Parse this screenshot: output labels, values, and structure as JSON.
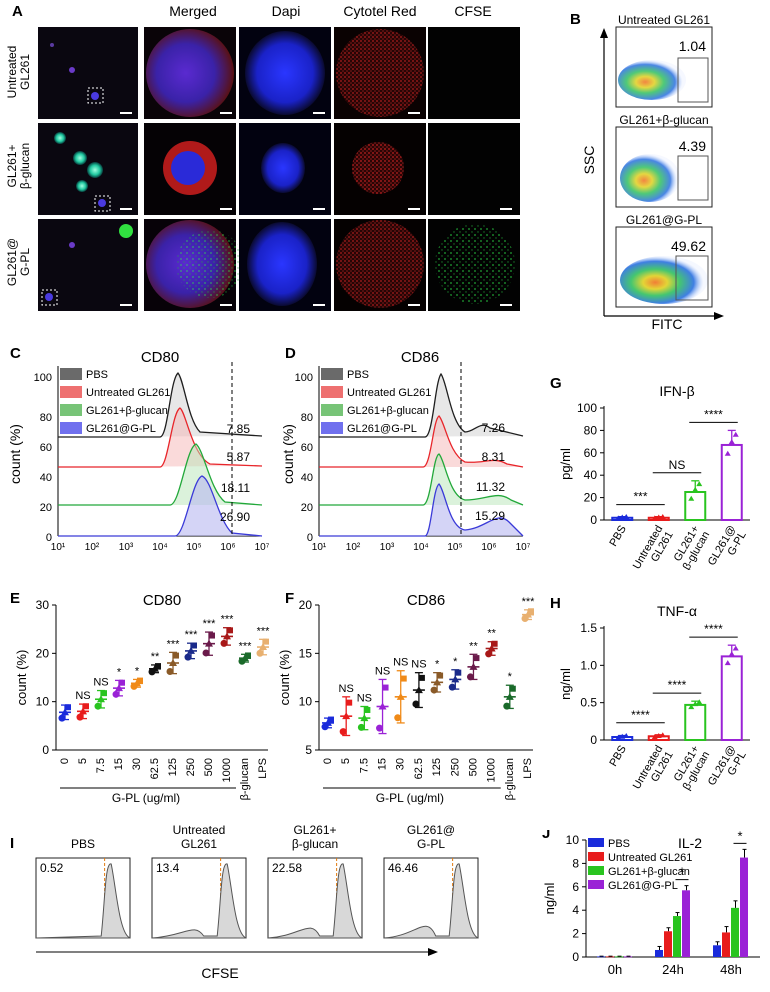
{
  "panelA": {
    "label": "A",
    "columns": [
      "Merged",
      "Dapi",
      "Cytotel Red",
      "CFSE"
    ],
    "rows": [
      {
        "line1": "Untreated",
        "line2": "GL261"
      },
      {
        "line1": "GL261+",
        "line2": "β-glucan"
      },
      {
        "line1": "GL261@",
        "line2": "G-PL"
      }
    ]
  },
  "panelB": {
    "label": "B",
    "ylabel": "SSC",
    "xlabel": "FITC",
    "plots": [
      {
        "title": "Untreated GL261",
        "value": "1.04"
      },
      {
        "title": "GL261+β-glucan",
        "value": "4.39"
      },
      {
        "title": "GL261@G-PL",
        "value": "49.62"
      }
    ]
  },
  "panelC": {
    "label": "C",
    "title": "CD80",
    "ylabel": "count (%)",
    "yticks": [
      "0",
      "20",
      "40",
      "60",
      "80",
      "100"
    ],
    "xticks": [
      "10¹",
      "10²",
      "10³",
      "10⁴",
      "10⁵",
      "10⁶",
      "10⁷"
    ],
    "legend": [
      "PBS",
      "Untreated GL261",
      "GL261+β-glucan",
      "GL261@G-PL"
    ],
    "values": [
      "7.85",
      "5.87",
      "18.11",
      "26.90"
    ]
  },
  "panelD": {
    "label": "D",
    "title": "CD86",
    "ylabel": "count (%)",
    "yticks": [
      "0",
      "20",
      "40",
      "60",
      "80",
      "100"
    ],
    "xticks": [
      "10¹",
      "10²",
      "10³",
      "10⁴",
      "10⁵",
      "10⁶",
      "10⁷"
    ],
    "legend": [
      "PBS",
      "Untreated GL261",
      "GL261+β-glucan",
      "GL261@G-PL"
    ],
    "values": [
      "7.26",
      "8.31",
      "11.32",
      "15.29"
    ]
  },
  "colors": {
    "pbs": "#1f1f1f",
    "untreated": "#e8252a",
    "beta": "#22a83a",
    "gpl": "#3a3ad8",
    "blue": "#1a2bdb",
    "red": "#e81c1c",
    "green": "#29c41f",
    "purple": "#9a22d6"
  },
  "chart_data": [
    {
      "id": "E",
      "type": "scatter",
      "title": "CD80",
      "ylabel": "count (%)",
      "xlabel": "G-PL (ug/ml)",
      "ylim": [
        0,
        30
      ],
      "yticks": [
        "0",
        "10",
        "20",
        "30"
      ],
      "categories": [
        "0",
        "5",
        "7.5",
        "15",
        "30",
        "62.5",
        "125",
        "250",
        "500",
        "1000",
        "β-glucan",
        "LPS"
      ],
      "values": [
        7.8,
        8.0,
        10.5,
        12.8,
        13.8,
        16.8,
        18.0,
        20.5,
        22.0,
        23.5,
        19.0,
        21.3
      ],
      "errors": [
        1.5,
        1.5,
        1.8,
        1.6,
        0.8,
        0.8,
        2.2,
        1.6,
        2.4,
        1.8,
        0.8,
        1.6
      ],
      "significance": [
        "",
        "NS",
        "NS",
        "*",
        "*",
        "**",
        "***",
        "***",
        "***",
        "***",
        "***",
        "***"
      ]
    },
    {
      "id": "F",
      "type": "scatter",
      "title": "CD86",
      "ylabel": "count (%)",
      "xlabel": "G-PL (ug/ml)",
      "ylim": [
        5,
        20
      ],
      "yticks": [
        "5",
        "10",
        "15",
        "20"
      ],
      "categories": [
        "0",
        "5",
        "7.5",
        "15",
        "30",
        "62.5",
        "125",
        "250",
        "500",
        "1000",
        "β-glucan",
        "LPS"
      ],
      "values": [
        7.8,
        8.5,
        8.3,
        9.5,
        10.5,
        11.2,
        12.0,
        12.3,
        13.6,
        15.5,
        10.5,
        19.0
      ],
      "errors": [
        0.5,
        2.0,
        1.2,
        2.8,
        2.7,
        1.8,
        1.0,
        1.0,
        1.3,
        0.7,
        1.2,
        0.5
      ],
      "significance": [
        "",
        "NS",
        "NS",
        "NS",
        "NS",
        "NS",
        "*",
        "*",
        "**",
        "**",
        "*",
        "***"
      ]
    },
    {
      "id": "G",
      "type": "bar",
      "title": "IFN-β",
      "ylabel": "pg/ml",
      "ylim": [
        0,
        100
      ],
      "yticks": [
        "0",
        "20",
        "40",
        "60",
        "80",
        "100"
      ],
      "categories": [
        "PBS",
        "Untreated GL261",
        "GL261+ β-glucan",
        "GL261@ G-PL"
      ],
      "values": [
        2,
        2,
        25,
        67
      ],
      "errors": [
        1,
        1,
        10,
        13
      ],
      "comparisons": [
        {
          "label": "***"
        },
        {
          "label": "NS"
        },
        {
          "label": "****"
        }
      ]
    },
    {
      "id": "H",
      "type": "bar",
      "title": "TNF-α",
      "ylabel": "ng/ml",
      "ylim": [
        0,
        1.5
      ],
      "yticks": [
        "0",
        "0.5",
        "1.0",
        "1.5"
      ],
      "categories": [
        "PBS",
        "Untreated GL261",
        "GL261+ β-glucan",
        "GL261@ G-PL"
      ],
      "values": [
        0.04,
        0.05,
        0.47,
        1.12
      ],
      "errors": [
        0.02,
        0.02,
        0.05,
        0.15
      ],
      "comparisons": [
        {
          "label": "****"
        },
        {
          "label": "****"
        },
        {
          "label": "****"
        }
      ]
    },
    {
      "id": "I",
      "type": "histogram",
      "xlabel": "CFSE",
      "plots": [
        {
          "title1": "",
          "title2": "PBS",
          "value": "0.52"
        },
        {
          "title1": "Untreated",
          "title2": "GL261",
          "value": "13.4"
        },
        {
          "title1": "GL261+",
          "title2": "β-glucan",
          "value": "22.58"
        },
        {
          "title1": "GL261@",
          "title2": "G-PL",
          "value": "46.46"
        }
      ]
    },
    {
      "id": "J",
      "type": "bar",
      "title": "IL-2",
      "ylabel": "ng/ml",
      "ylim": [
        0,
        10
      ],
      "yticks": [
        "0",
        "2",
        "4",
        "6",
        "8",
        "10"
      ],
      "categories": [
        "0h",
        "24h",
        "48h"
      ],
      "series": [
        {
          "name": "PBS",
          "values": [
            0.05,
            0.6,
            1.0
          ],
          "errors": [
            0.02,
            0.3,
            0.3
          ]
        },
        {
          "name": "Untreated GL261",
          "values": [
            0.05,
            2.2,
            2.1
          ],
          "errors": [
            0.02,
            0.3,
            0.5
          ]
        },
        {
          "name": "GL261+β-glucan",
          "values": [
            0.05,
            3.5,
            4.2
          ],
          "errors": [
            0.02,
            0.3,
            0.6
          ]
        },
        {
          "name": "GL261@G-PL",
          "values": [
            0.05,
            5.7,
            8.5
          ],
          "errors": [
            0.02,
            0.4,
            0.7
          ]
        }
      ],
      "significance": [
        "",
        "*",
        "*"
      ]
    }
  ]
}
